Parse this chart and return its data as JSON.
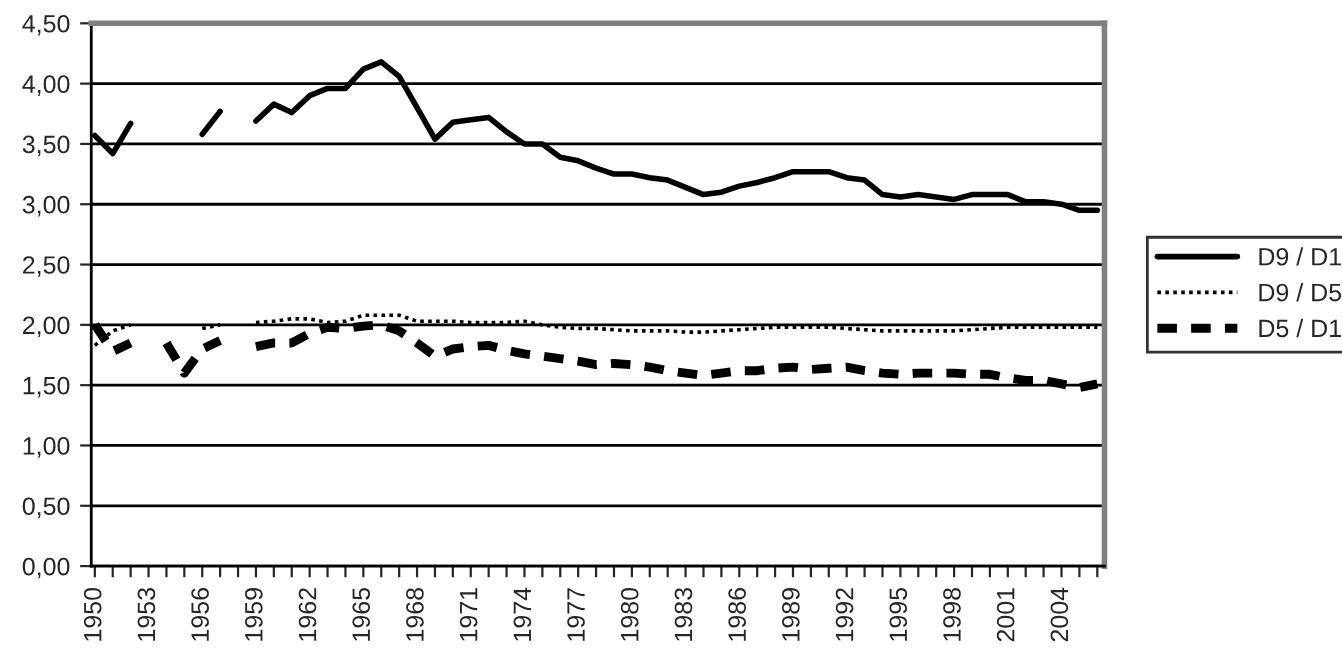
{
  "chart_data": {
    "type": "line",
    "categories": [
      "1950",
      null,
      null,
      "1953",
      null,
      null,
      "1956",
      null,
      null,
      "1959",
      null,
      null,
      "1962",
      null,
      null,
      "1965",
      null,
      null,
      "1968",
      null,
      null,
      "1971",
      null,
      null,
      "1974",
      null,
      null,
      "1977",
      null,
      null,
      "1980",
      null,
      null,
      "1983",
      null,
      null,
      "1986",
      null,
      null,
      "1989",
      null,
      null,
      "1992",
      null,
      null,
      "1995",
      null,
      null,
      "1998",
      null,
      null,
      "2001",
      null,
      null,
      "2004",
      null,
      null
    ],
    "ylim": [
      0,
      4.5
    ],
    "yticks": [
      {
        "value": 0,
        "label": "0,00"
      },
      {
        "value": 0.5,
        "label": "0,50"
      },
      {
        "value": 1,
        "label": "1,00"
      },
      {
        "value": 1.5,
        "label": "1,50"
      },
      {
        "value": 2,
        "label": "2,00"
      },
      {
        "value": 2.5,
        "label": "2,50"
      },
      {
        "value": 3,
        "label": "3,00"
      },
      {
        "value": 3.5,
        "label": "3,50"
      },
      {
        "value": 4,
        "label": "4,00"
      },
      {
        "value": 4.5,
        "label": "4,50"
      }
    ],
    "grid": "y",
    "legend": "right",
    "marker": "none",
    "series": [
      {
        "name": "D9 / D1",
        "color": "#000000",
        "line_style": "solid",
        "values": [
          3.57,
          3.42,
          3.67,
          null,
          null,
          null,
          3.58,
          3.77,
          null,
          3.69,
          3.83,
          3.76,
          3.9,
          3.96,
          3.96,
          4.12,
          4.18,
          4.06,
          3.8,
          3.54,
          3.68,
          3.7,
          3.72,
          3.6,
          3.5,
          3.5,
          3.39,
          3.36,
          3.3,
          3.25,
          3.25,
          3.22,
          3.2,
          3.14,
          3.08,
          3.1,
          3.15,
          3.18,
          3.22,
          3.27,
          3.27,
          3.27,
          3.22,
          3.2,
          3.08,
          3.06,
          3.08,
          3.06,
          3.04,
          3.08,
          3.08,
          3.08,
          3.02,
          3.02,
          3.0,
          2.95,
          2.95
        ]
      },
      {
        "name": "D9 / D5",
        "color": "#000000",
        "line_style": "dotted",
        "values": [
          1.83,
          1.95,
          2.0,
          null,
          null,
          null,
          1.97,
          2.0,
          null,
          2.02,
          2.03,
          2.05,
          2.05,
          2.02,
          2.03,
          2.08,
          2.08,
          2.08,
          2.03,
          2.03,
          2.03,
          2.02,
          2.02,
          2.02,
          2.03,
          2.0,
          1.98,
          1.97,
          1.97,
          1.96,
          1.95,
          1.95,
          1.95,
          1.94,
          1.94,
          1.95,
          1.96,
          1.97,
          1.98,
          1.98,
          1.98,
          1.98,
          1.97,
          1.96,
          1.95,
          1.95,
          1.95,
          1.95,
          1.95,
          1.96,
          1.97,
          1.98,
          1.98,
          1.98,
          1.98,
          1.98,
          1.98
        ]
      },
      {
        "name": "D5 / D1",
        "color": "#000000",
        "line_style": "dashed",
        "values": [
          2.0,
          1.78,
          1.85,
          null,
          1.85,
          1.6,
          1.8,
          1.87,
          null,
          1.82,
          1.85,
          1.85,
          1.93,
          1.98,
          1.97,
          1.99,
          2.0,
          1.95,
          1.85,
          1.74,
          1.8,
          1.82,
          1.83,
          1.79,
          1.76,
          1.74,
          1.72,
          1.7,
          1.67,
          1.68,
          1.67,
          1.65,
          1.62,
          1.6,
          1.58,
          1.6,
          1.62,
          1.62,
          1.64,
          1.65,
          1.63,
          1.64,
          1.65,
          1.62,
          1.6,
          1.59,
          1.6,
          1.6,
          1.6,
          1.59,
          1.59,
          1.56,
          1.54,
          1.54,
          1.51,
          1.48,
          1.51
        ]
      }
    ]
  }
}
